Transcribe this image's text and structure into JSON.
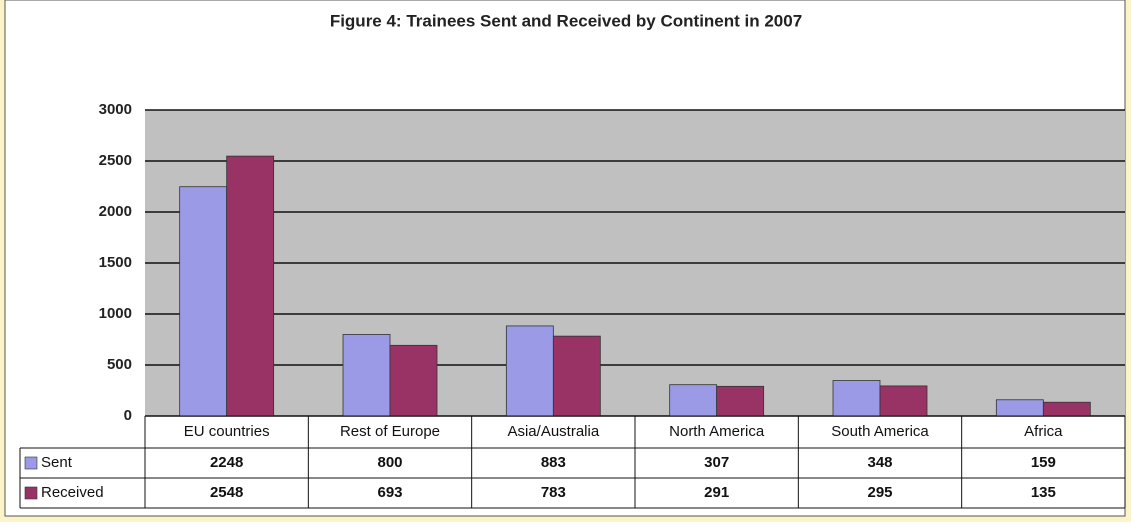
{
  "chart_data": {
    "type": "bar",
    "title": "Figure 4: Trainees Sent and Received by Continent in 2007",
    "categories": [
      "EU countries",
      "Rest of Europe",
      "Asia/Australia",
      "North America",
      "South America",
      "Africa"
    ],
    "series": [
      {
        "name": "Sent",
        "color": "#9a9ae6",
        "values": [
          2248,
          800,
          883,
          307,
          348,
          159
        ]
      },
      {
        "name": "Received",
        "color": "#993366",
        "values": [
          2548,
          693,
          783,
          291,
          295,
          135
        ]
      }
    ],
    "ylim": [
      0,
      3000
    ],
    "yticks": [
      0,
      500,
      1000,
      1500,
      2000,
      2500,
      3000
    ],
    "grid": true
  }
}
